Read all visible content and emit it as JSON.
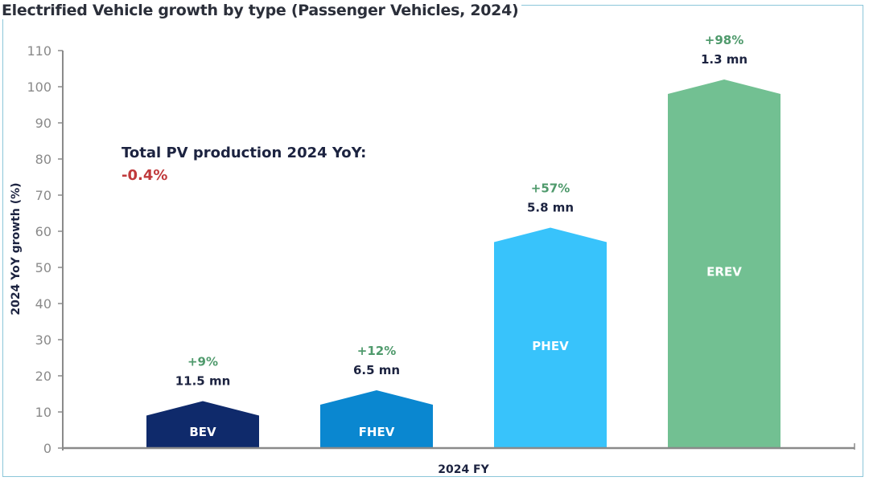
{
  "chart_data": {
    "type": "bar",
    "title": "Electrified Vehicle growth by type (Passenger Vehicles, 2024)",
    "xlabel": "2024 FY",
    "ylabel": "2024 YoY growth (%)",
    "ylim": [
      0,
      110
    ],
    "yticks": [
      0,
      10,
      20,
      30,
      40,
      50,
      60,
      70,
      80,
      90,
      100,
      110
    ],
    "grid": false,
    "categories": [
      "BEV",
      "FHEV",
      "PHEV",
      "EREV"
    ],
    "values": [
      9,
      12,
      57,
      98
    ],
    "growth_labels": [
      "+9%",
      "+12%",
      "+57%",
      "+98%"
    ],
    "volume_labels": [
      "11.5 mn",
      "6.5 mn",
      "5.8 mn",
      "1.3 mn"
    ],
    "colors": [
      "#0f2a6b",
      "#0a87d0",
      "#38c3fb",
      "#72c092"
    ],
    "annotation": {
      "title": "Total PV production 2024 YoY:",
      "value": "-0.4%"
    }
  }
}
